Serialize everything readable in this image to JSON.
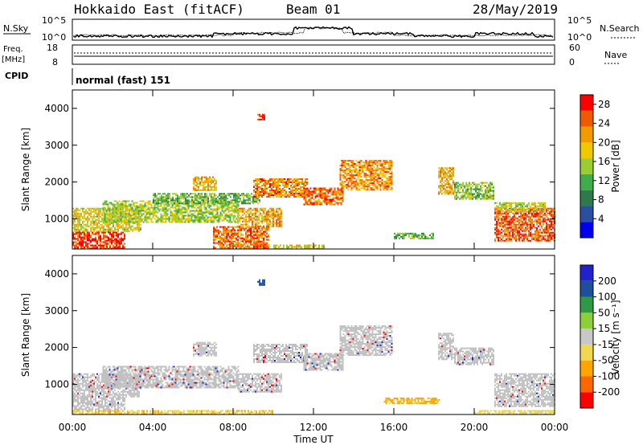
{
  "header": {
    "radar": "Hokkaido East (fitACF)",
    "beam": "Beam 01",
    "date": "28/May/2019"
  },
  "status": {
    "nsky_label": "N.Sky",
    "nsky_ticks": [
      "10^5",
      "10^0"
    ],
    "nsearch_label": "N.Search",
    "nsearch_ticks": [
      "10^5",
      "10^0"
    ],
    "freq_label": "Freq.",
    "freq_unit": "[MHz]",
    "freq_ticks": [
      "18",
      "8"
    ],
    "nave_label": "Nave",
    "nave_ticks": [
      "60",
      "0"
    ],
    "cpid_label": "CPID",
    "cpid_value": "normal (fast) 151"
  },
  "colors": {
    "power": [
      "#0000ee",
      "#2a4fa0",
      "#2f7a4a",
      "#3fae4a",
      "#9acd32",
      "#f0c800",
      "#f39a00",
      "#ef5a00",
      "#ff0000"
    ],
    "velocity": [
      "#ff0000",
      "#ff6600",
      "#ffa500",
      "#f2d750",
      "#c8c8c8",
      "#8ccf3a",
      "#2e9b44",
      "#1f4f9a",
      "#2222cc"
    ],
    "ground_scatter": "#c0c0c0"
  },
  "chart_data": [
    {
      "type": "heatmap",
      "name": "power-panel",
      "ylabel": "Slant Range [km]",
      "xlabel": "Time UT",
      "x_ticks": [
        "00:00",
        "04:00",
        "08:00",
        "12:00",
        "16:00",
        "20:00",
        "00:00"
      ],
      "y_ticks": [
        "1000",
        "2000",
        "3000",
        "4000"
      ],
      "xlim_hours": [
        0,
        24
      ],
      "ylim_km": [
        180,
        4500
      ],
      "colorbar": {
        "label": "Power [dB]",
        "ticks": [
          "4",
          "8",
          "12",
          "16",
          "20",
          "24",
          "28"
        ],
        "range": [
          0,
          30
        ]
      },
      "regions": [
        {
          "t0": 0.0,
          "t1": 2.6,
          "r0": 200,
          "r1": 650,
          "v": 27
        },
        {
          "t0": 0.0,
          "t1": 3.4,
          "r0": 650,
          "r1": 1300,
          "v": 18
        },
        {
          "t0": 1.5,
          "t1": 8.3,
          "r0": 900,
          "r1": 1500,
          "v": 15
        },
        {
          "t0": 4.0,
          "t1": 9.3,
          "r0": 1400,
          "r1": 1700,
          "v": 13
        },
        {
          "t0": 6.0,
          "t1": 7.2,
          "r0": 1800,
          "r1": 2150,
          "v": 20
        },
        {
          "t0": 7.0,
          "t1": 9.8,
          "r0": 200,
          "r1": 800,
          "v": 24
        },
        {
          "t0": 8.2,
          "t1": 10.4,
          "r0": 800,
          "r1": 1300,
          "v": 21
        },
        {
          "t0": 9.0,
          "t1": 11.7,
          "r0": 1600,
          "r1": 2100,
          "v": 23
        },
        {
          "t0": 11.5,
          "t1": 13.5,
          "r0": 1400,
          "r1": 1850,
          "v": 24
        },
        {
          "t0": 13.3,
          "t1": 15.9,
          "r0": 1800,
          "r1": 2600,
          "v": 22
        },
        {
          "t0": 9.2,
          "t1": 9.6,
          "r0": 3700,
          "r1": 3850,
          "v": 28
        },
        {
          "t0": 10.0,
          "t1": 12.5,
          "r0": 200,
          "r1": 300,
          "v": 18
        },
        {
          "t0": 16.0,
          "t1": 18.0,
          "r0": 480,
          "r1": 620,
          "v": 12
        },
        {
          "t0": 18.2,
          "t1": 19.0,
          "r0": 1700,
          "r1": 2400,
          "v": 20
        },
        {
          "t0": 19.0,
          "t1": 21.0,
          "r0": 1550,
          "r1": 2000,
          "v": 14
        },
        {
          "t0": 21.0,
          "t1": 24.0,
          "r0": 400,
          "r1": 1300,
          "v": 25
        },
        {
          "t0": 21.0,
          "t1": 23.5,
          "r0": 1200,
          "r1": 1450,
          "v": 17
        }
      ]
    },
    {
      "type": "heatmap",
      "name": "velocity-panel",
      "ylabel": "Slant Range [km]",
      "xlabel": "Time UT",
      "x_ticks": [
        "00:00",
        "04:00",
        "08:00",
        "12:00",
        "16:00",
        "20:00",
        "00:00"
      ],
      "y_ticks": [
        "1000",
        "2000",
        "3000",
        "4000"
      ],
      "xlim_hours": [
        0,
        24
      ],
      "ylim_km": [
        180,
        4500
      ],
      "colorbar": {
        "label": "Velocity [m s⁻¹]",
        "ticks": [
          "200",
          "100",
          "50",
          "15",
          "-15",
          "-50",
          "-100",
          "-200"
        ],
        "range": [
          -250,
          250
        ]
      },
      "regions": [
        {
          "t0": 0.0,
          "t1": 2.6,
          "r0": 300,
          "r1": 650,
          "v": 0
        },
        {
          "t0": 0.0,
          "t1": 3.4,
          "r0": 650,
          "r1": 1300,
          "v": 0
        },
        {
          "t0": 1.5,
          "t1": 8.3,
          "r0": 900,
          "r1": 1500,
          "v": 0
        },
        {
          "t0": 6.0,
          "t1": 7.2,
          "r0": 1800,
          "r1": 2150,
          "v": 0
        },
        {
          "t0": 8.2,
          "t1": 10.4,
          "r0": 800,
          "r1": 1300,
          "v": 0
        },
        {
          "t0": 9.0,
          "t1": 11.7,
          "r0": 1600,
          "r1": 2100,
          "v": 0
        },
        {
          "t0": 11.5,
          "t1": 13.5,
          "r0": 1400,
          "r1": 1850,
          "v": 0
        },
        {
          "t0": 13.3,
          "t1": 15.9,
          "r0": 1800,
          "r1": 2600,
          "v": 0
        },
        {
          "t0": 9.2,
          "t1": 9.6,
          "r0": 3700,
          "r1": 3850,
          "v": 160
        },
        {
          "t0": 0.0,
          "t1": 10.0,
          "r0": 200,
          "r1": 300,
          "v": -40
        },
        {
          "t0": 15.5,
          "t1": 18.3,
          "r0": 480,
          "r1": 640,
          "v": -60
        },
        {
          "t0": 18.2,
          "t1": 19.0,
          "r0": 1700,
          "r1": 2400,
          "v": 0
        },
        {
          "t0": 19.0,
          "t1": 21.0,
          "r0": 1550,
          "r1": 2000,
          "v": 0
        },
        {
          "t0": 21.0,
          "t1": 24.0,
          "r0": 400,
          "r1": 1300,
          "v": 0
        },
        {
          "t0": 20.0,
          "t1": 24.0,
          "r0": 200,
          "r1": 300,
          "v": -30
        }
      ]
    }
  ]
}
